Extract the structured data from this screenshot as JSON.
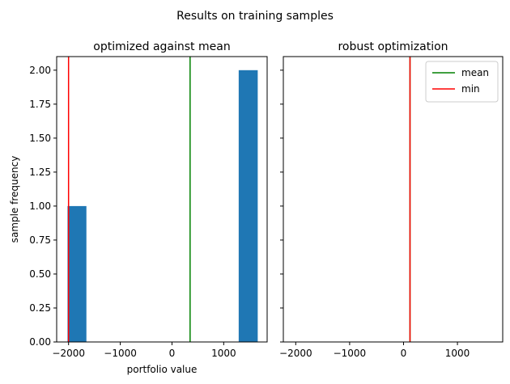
{
  "figure_title": "Results on training samples",
  "chart_data": [
    {
      "type": "histogram",
      "title": "optimized against mean",
      "xlabel": "portfolio value",
      "ylabel": "sample frequency",
      "xlim": [
        -2230,
        1840
      ],
      "ylim": [
        0,
        2.1
      ],
      "xticks": [
        -2000,
        -1000,
        0,
        1000
      ],
      "xtick_labels": [
        "−2000",
        "−1000",
        "0",
        "1000"
      ],
      "yticks": [
        0,
        0.25,
        0.5,
        0.75,
        1.0,
        1.25,
        1.5,
        1.75,
        2.0
      ],
      "ytick_labels": [
        "0.00",
        "0.25",
        "0.50",
        "0.75",
        "1.00",
        "1.25",
        "1.50",
        "1.75",
        "2.00"
      ],
      "bars": [
        {
          "x0": -2020,
          "x1": -1655,
          "count": 1
        },
        {
          "x0": 1290,
          "x1": 1658,
          "count": 2
        }
      ],
      "vlines": [
        {
          "name": "mean",
          "x": 350,
          "color": "#008000"
        },
        {
          "name": "min",
          "x": -2000,
          "color": "#ff0000"
        }
      ],
      "bar_color": "#1f77b4"
    },
    {
      "type": "histogram",
      "title": "robust optimization",
      "xlabel": "",
      "ylabel": "",
      "xlim": [
        -2230,
        1840
      ],
      "ylim": [
        0,
        2.1
      ],
      "xticks": [
        -2000,
        -1000,
        0,
        1000
      ],
      "xtick_labels": [
        "−2000",
        "−1000",
        "0",
        "1000"
      ],
      "yticks": [
        0,
        0.25,
        0.5,
        0.75,
        1.0,
        1.25,
        1.5,
        1.75,
        2.0
      ],
      "ytick_labels": [],
      "bars": [],
      "vlines": [
        {
          "name": "mean",
          "x": 120,
          "color": "#008000"
        },
        {
          "name": "min",
          "x": 120,
          "color": "#ff0000"
        }
      ],
      "bar_color": "#1f77b4",
      "legend": {
        "placement": "top-right",
        "entries": [
          {
            "label": "mean",
            "color": "#008000"
          },
          {
            "label": "min",
            "color": "#ff0000"
          }
        ]
      }
    }
  ]
}
